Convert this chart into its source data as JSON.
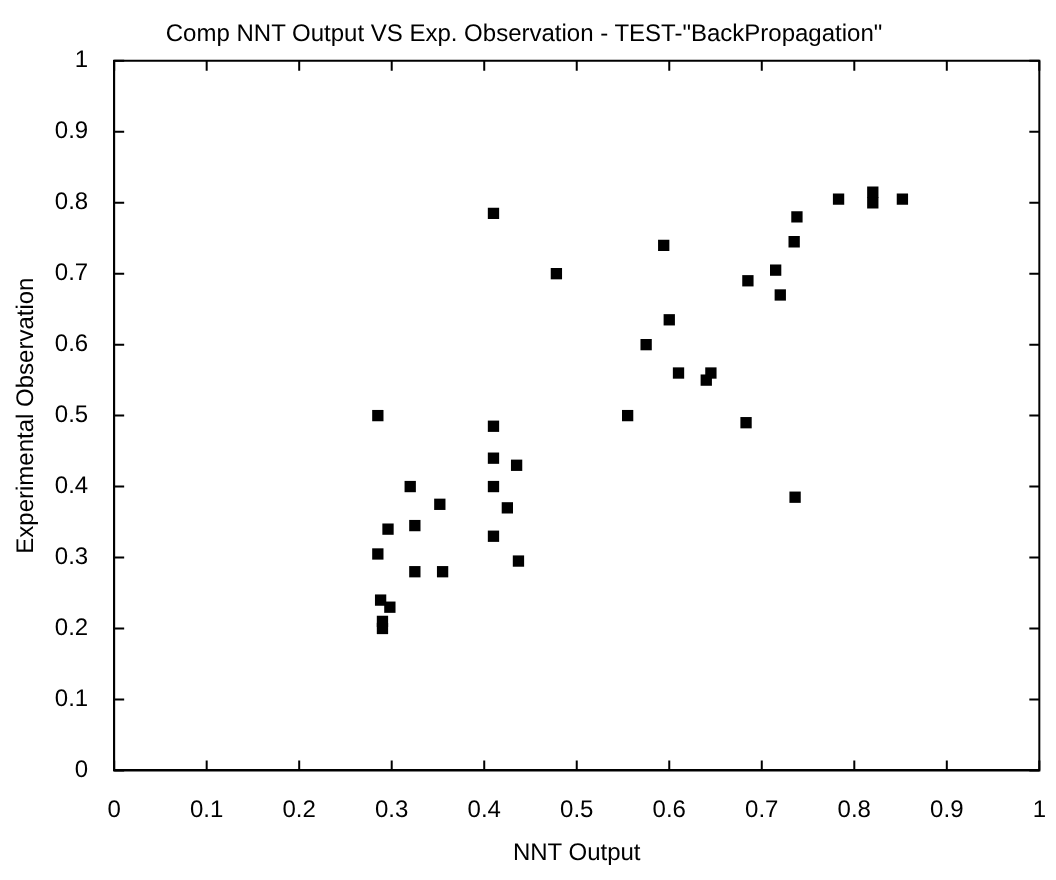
{
  "chart_data": {
    "type": "scatter",
    "title": "Comp NNT Output VS Exp. Observation - TEST-\"BackPropagation\"",
    "xlabel": "NNT Output",
    "ylabel": "Experimental Observation",
    "x": [
      0.285,
      0.285,
      0.288,
      0.29,
      0.29,
      0.298,
      0.296,
      0.32,
      0.325,
      0.325,
      0.352,
      0.355,
      0.41,
      0.41,
      0.41,
      0.41,
      0.41,
      0.425,
      0.435,
      0.437,
      0.478,
      0.555,
      0.575,
      0.594,
      0.6,
      0.61,
      0.64,
      0.645,
      0.683,
      0.685,
      0.715,
      0.72,
      0.735,
      0.738,
      0.736,
      0.783,
      0.82,
      0.82,
      0.852
    ],
    "values": [
      0.5,
      0.305,
      0.24,
      0.21,
      0.2,
      0.23,
      0.34,
      0.4,
      0.345,
      0.28,
      0.375,
      0.28,
      0.785,
      0.485,
      0.44,
      0.4,
      0.33,
      0.37,
      0.43,
      0.295,
      0.7,
      0.5,
      0.6,
      0.74,
      0.635,
      0.56,
      0.55,
      0.56,
      0.49,
      0.69,
      0.705,
      0.67,
      0.745,
      0.78,
      0.385,
      0.805,
      0.815,
      0.8,
      0.805
    ],
    "color": "#000000",
    "marker": "square",
    "xlim": [
      0,
      1
    ],
    "xticks": [
      0,
      0.1,
      0.2,
      0.3,
      0.4,
      0.5,
      0.6,
      0.7,
      0.8,
      0.9,
      1
    ],
    "ylim": [
      0,
      1
    ],
    "yticks": [
      0,
      0.1,
      0.2,
      0.3,
      0.4,
      0.5,
      0.6,
      0.7,
      0.8,
      0.9,
      1
    ]
  }
}
